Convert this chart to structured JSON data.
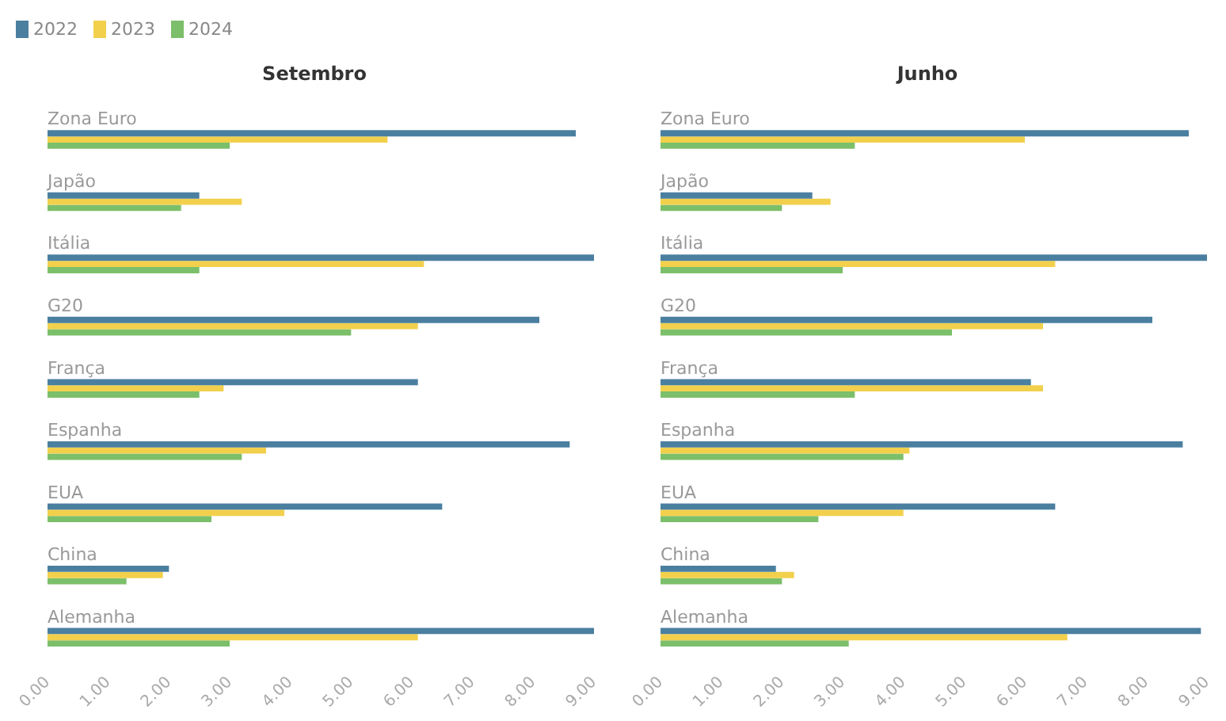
{
  "chart_data": [
    {
      "type": "bar",
      "orientation": "horizontal",
      "title": "Setembro",
      "legend": "top left",
      "grid": false,
      "categories": [
        "Zona Euro",
        "Japão",
        "Itália",
        "G20",
        "França",
        "Espanha",
        "EUA",
        "China",
        "Alemanha"
      ],
      "series": [
        {
          "name": "2022",
          "color": "#4a7fa0",
          "values": [
            8.7,
            2.5,
            9.0,
            8.1,
            6.1,
            8.6,
            6.5,
            2.0,
            9.0
          ]
        },
        {
          "name": "2023",
          "color": "#f2d04c",
          "values": [
            5.6,
            3.2,
            6.2,
            6.1,
            2.9,
            3.6,
            3.9,
            1.9,
            6.1
          ]
        },
        {
          "name": "2024",
          "color": "#7cbf6a",
          "values": [
            3.0,
            2.2,
            2.5,
            5.0,
            2.5,
            3.2,
            2.7,
            1.3,
            3.0
          ]
        }
      ],
      "xlim": [
        0,
        9
      ],
      "xticks": [
        {
          "value": 0,
          "label": "0.00"
        },
        {
          "value": 1,
          "label": "1.00"
        },
        {
          "value": 2,
          "label": "2.00"
        },
        {
          "value": 3,
          "label": "3.00"
        },
        {
          "value": 4,
          "label": "4.00"
        },
        {
          "value": 5,
          "label": "5.00"
        },
        {
          "value": 6,
          "label": "6.00"
        },
        {
          "value": 7,
          "label": "7.00"
        },
        {
          "value": 8,
          "label": "8.00"
        },
        {
          "value": 9,
          "label": "9.00"
        }
      ]
    },
    {
      "type": "bar",
      "orientation": "horizontal",
      "title": "Junho",
      "grid": false,
      "categories": [
        "Zona Euro",
        "Japão",
        "Itália",
        "G20",
        "França",
        "Espanha",
        "EUA",
        "China",
        "Alemanha"
      ],
      "series": [
        {
          "name": "2022",
          "color": "#4a7fa0",
          "values": [
            8.7,
            2.5,
            9.0,
            8.1,
            6.1,
            8.6,
            6.5,
            1.9,
            8.9
          ]
        },
        {
          "name": "2023",
          "color": "#f2d04c",
          "values": [
            6.0,
            2.8,
            6.5,
            6.3,
            6.3,
            4.1,
            4.0,
            2.2,
            6.7
          ]
        },
        {
          "name": "2024",
          "color": "#7cbf6a",
          "values": [
            3.2,
            2.0,
            3.0,
            4.8,
            3.2,
            4.0,
            2.6,
            2.0,
            3.1
          ]
        }
      ],
      "xlim": [
        0,
        9
      ],
      "xticks": [
        {
          "value": 0,
          "label": "0.00"
        },
        {
          "value": 1,
          "label": "1.00"
        },
        {
          "value": 2,
          "label": "2.00"
        },
        {
          "value": 3,
          "label": "3.00"
        },
        {
          "value": 4,
          "label": "4.00"
        },
        {
          "value": 5,
          "label": "5.00"
        },
        {
          "value": 6,
          "label": "6.00"
        },
        {
          "value": 7,
          "label": "7.00"
        },
        {
          "value": 8,
          "label": "8.00"
        },
        {
          "value": 9,
          "label": "9.00"
        }
      ]
    }
  ]
}
